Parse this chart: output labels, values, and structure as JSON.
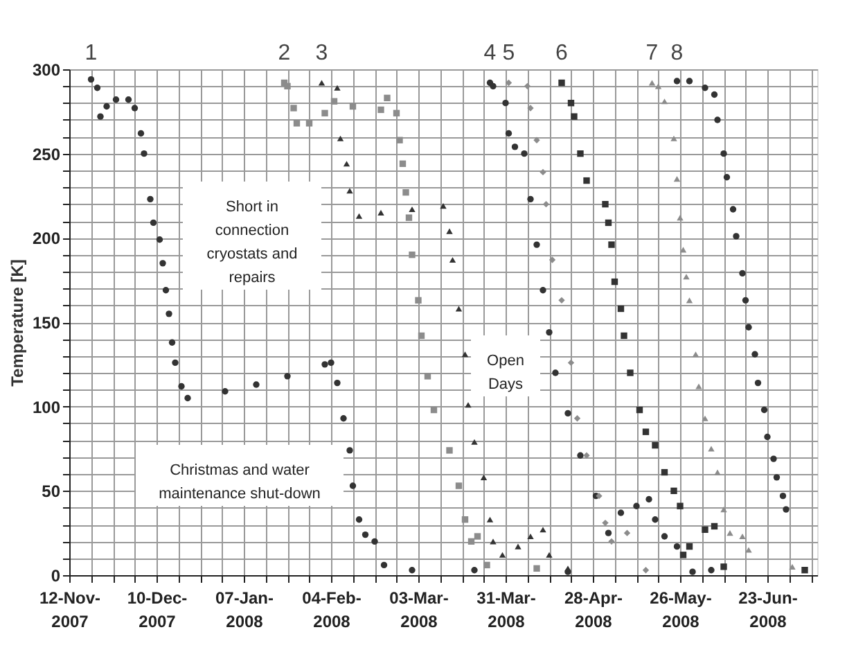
{
  "chart_data": {
    "type": "scatter",
    "ylabel": "Temperature [K]",
    "xlim": [
      "2007-11-12",
      "2008-07-09"
    ],
    "ylim": [
      0,
      300
    ],
    "xticks": [
      {
        "value": "2007-11-12",
        "label": "12-Nov-2007"
      },
      {
        "value": "2007-11-19",
        "label": null
      },
      {
        "value": "2007-11-26",
        "label": null
      },
      {
        "value": "2007-12-03",
        "label": null
      },
      {
        "value": "2007-12-10",
        "label": "10-Dec-2007"
      },
      {
        "value": "2007-12-17",
        "label": null
      },
      {
        "value": "2007-12-24",
        "label": null
      },
      {
        "value": "2007-12-31",
        "label": null
      },
      {
        "value": "2008-01-07",
        "label": "07-Jan-2008"
      },
      {
        "value": "2008-01-14",
        "label": null
      },
      {
        "value": "2008-01-21",
        "label": null
      },
      {
        "value": "2008-01-28",
        "label": null
      },
      {
        "value": "2008-02-04",
        "label": "04-Feb-2008"
      },
      {
        "value": "2008-02-11",
        "label": null
      },
      {
        "value": "2008-02-18",
        "label": null
      },
      {
        "value": "2008-02-25",
        "label": null
      },
      {
        "value": "2008-03-03",
        "label": "03-Mar-2008"
      },
      {
        "value": "2008-03-10",
        "label": null
      },
      {
        "value": "2008-03-17",
        "label": null
      },
      {
        "value": "2008-03-24",
        "label": null
      },
      {
        "value": "2008-03-31",
        "label": "31-Mar-2008"
      },
      {
        "value": "2008-04-07",
        "label": null
      },
      {
        "value": "2008-04-14",
        "label": null
      },
      {
        "value": "2008-04-21",
        "label": null
      },
      {
        "value": "2008-04-28",
        "label": "28-Apr-2008"
      },
      {
        "value": "2008-05-05",
        "label": null
      },
      {
        "value": "2008-05-12",
        "label": null
      },
      {
        "value": "2008-05-19",
        "label": null
      },
      {
        "value": "2008-05-26",
        "label": "26-May-2008"
      },
      {
        "value": "2008-06-02",
        "label": null
      },
      {
        "value": "2008-06-09",
        "label": null
      },
      {
        "value": "2008-06-16",
        "label": null
      },
      {
        "value": "2008-06-23",
        "label": "23-Jun-2008"
      },
      {
        "value": "2008-06-30",
        "label": null
      },
      {
        "value": "2008-07-07",
        "label": null
      }
    ],
    "yticks": [
      0,
      {
        "value": 10,
        "label": null
      },
      {
        "value": 20,
        "label": null
      },
      {
        "value": 30,
        "label": null
      },
      {
        "value": 40,
        "label": null
      },
      50,
      {
        "value": 60,
        "label": null
      },
      {
        "value": 70,
        "label": null
      },
      {
        "value": 80,
        "label": null
      },
      {
        "value": 90,
        "label": null
      },
      100,
      {
        "value": 110,
        "label": null
      },
      {
        "value": 120,
        "label": null
      },
      {
        "value": 130,
        "label": null
      },
      {
        "value": 140,
        "label": null
      },
      150,
      {
        "value": 160,
        "label": null
      },
      {
        "value": 170,
        "label": null
      },
      {
        "value": 180,
        "label": null
      },
      {
        "value": 190,
        "label": null
      },
      200,
      {
        "value": 210,
        "label": null
      },
      {
        "value": 220,
        "label": null
      },
      {
        "value": 230,
        "label": null
      },
      {
        "value": 240,
        "label": null
      },
      250,
      {
        "value": 260,
        "label": null
      },
      {
        "value": 270,
        "label": null
      },
      {
        "value": 280,
        "label": null
      },
      {
        "value": 290,
        "label": null
      },
      300
    ],
    "grid": true,
    "annotations": [
      "Short in connection cryostats and repairs",
      "Open Days",
      "Christmas and water maintenance shut-down"
    ],
    "series": [
      {
        "name": "1",
        "color": "#333333",
        "marker": "circle",
        "x": [
          "2007-11-19",
          "2007-11-21",
          "2007-11-22",
          "2007-11-24",
          "2007-11-27",
          "2007-12-01",
          "2007-12-03",
          "2007-12-05",
          "2007-12-06",
          "2007-12-08",
          "2007-12-09",
          "2007-12-11",
          "2007-12-12",
          "2007-12-13",
          "2007-12-14",
          "2007-12-15",
          "2007-12-16",
          "2007-12-18",
          "2007-12-20",
          "2008-01-01",
          "2008-01-11",
          "2008-01-21",
          "2008-02-02",
          "2008-02-04",
          "2008-02-06",
          "2008-02-08",
          "2008-02-10",
          "2008-02-11",
          "2008-02-13",
          "2008-02-15",
          "2008-02-18",
          "2008-02-21",
          "2008-03-01",
          "2008-03-21",
          "2008-04-20",
          "2008-05-30"
        ],
        "values": [
          294,
          289,
          272,
          278,
          282,
          282,
          277,
          262,
          250,
          223,
          209,
          199,
          185,
          169,
          155,
          138,
          126,
          112,
          105,
          109,
          113,
          118,
          125,
          126,
          114,
          93,
          74,
          53,
          33,
          24,
          20,
          6,
          3,
          3,
          2,
          2
        ]
      },
      {
        "name": "2",
        "color": "#8c8c8c",
        "marker": "square",
        "x": [
          "2008-01-20",
          "2008-01-21",
          "2008-01-23",
          "2008-01-24",
          "2008-01-28",
          "2008-02-02",
          "2008-02-05",
          "2008-02-11",
          "2008-02-20",
          "2008-02-22",
          "2008-02-25",
          "2008-02-26",
          "2008-02-27",
          "2008-02-28",
          "2008-02-29",
          "2008-03-01",
          "2008-03-03",
          "2008-03-04",
          "2008-03-06",
          "2008-03-08",
          "2008-03-13",
          "2008-03-16",
          "2008-03-18",
          "2008-03-20",
          "2008-03-22",
          "2008-03-25",
          "2008-04-10"
        ],
        "values": [
          292,
          290,
          277,
          268,
          268,
          274,
          281,
          278,
          276,
          283,
          274,
          258,
          244,
          227,
          212,
          190,
          163,
          142,
          118,
          98,
          74,
          53,
          33,
          20,
          23,
          6,
          4
        ]
      },
      {
        "name": "3",
        "color": "#333333",
        "marker": "triangle",
        "x": [
          "2008-02-01",
          "2008-02-06",
          "2008-02-07",
          "2008-02-09",
          "2008-02-10",
          "2008-02-13",
          "2008-02-20",
          "2008-03-01",
          "2008-03-11",
          "2008-03-13",
          "2008-03-14",
          "2008-03-16",
          "2008-03-18",
          "2008-03-19",
          "2008-03-21",
          "2008-03-24",
          "2008-03-26",
          "2008-03-27",
          "2008-03-30",
          "2008-04-04",
          "2008-04-08",
          "2008-04-12",
          "2008-04-14",
          "2008-04-20"
        ],
        "values": [
          292,
          289,
          259,
          244,
          228,
          213,
          215,
          217,
          219,
          204,
          187,
          158,
          131,
          101,
          79,
          58,
          33,
          20,
          12,
          17,
          23,
          27,
          12,
          4
        ]
      },
      {
        "name": "4",
        "color": "#333333",
        "marker": "circle",
        "x": [
          "2008-03-26",
          "2008-03-27",
          "2008-03-31",
          "2008-04-01",
          "2008-04-03",
          "2008-04-06",
          "2008-04-08",
          "2008-04-10",
          "2008-04-12",
          "2008-04-14",
          "2008-04-16",
          "2008-04-20",
          "2008-04-24",
          "2008-04-29",
          "2008-05-03",
          "2008-05-07",
          "2008-05-12",
          "2008-05-16",
          "2008-05-18",
          "2008-05-21",
          "2008-05-25",
          "2008-06-05"
        ],
        "values": [
          292,
          290,
          280,
          262,
          254,
          250,
          223,
          196,
          169,
          144,
          120,
          96,
          71,
          47,
          25,
          37,
          41,
          45,
          33,
          23,
          17,
          3
        ]
      },
      {
        "name": "5",
        "color": "#8c8c8c",
        "marker": "diamond",
        "x": [
          "2008-04-01",
          "2008-04-07",
          "2008-04-08",
          "2008-04-10",
          "2008-04-12",
          "2008-04-13",
          "2008-04-15",
          "2008-04-18",
          "2008-04-21",
          "2008-04-23",
          "2008-04-26",
          "2008-04-30",
          "2008-05-02",
          "2008-05-04",
          "2008-05-09",
          "2008-05-15"
        ],
        "values": [
          292,
          290,
          277,
          258,
          239,
          220,
          187,
          163,
          126,
          93,
          71,
          47,
          31,
          20,
          25,
          3
        ]
      },
      {
        "name": "6",
        "color": "#333333",
        "marker": "square",
        "x": [
          "2008-04-18",
          "2008-04-21",
          "2008-04-22",
          "2008-04-24",
          "2008-04-26",
          "2008-05-02",
          "2008-05-03",
          "2008-05-04",
          "2008-05-05",
          "2008-05-07",
          "2008-05-08",
          "2008-05-10",
          "2008-05-13",
          "2008-05-15",
          "2008-05-18",
          "2008-05-21",
          "2008-05-24",
          "2008-05-26",
          "2008-05-27",
          "2008-05-29",
          "2008-06-03",
          "2008-06-06",
          "2008-06-09",
          "2008-07-05"
        ],
        "values": [
          292,
          280,
          272,
          250,
          234,
          220,
          209,
          196,
          174,
          158,
          142,
          120,
          98,
          85,
          77,
          61,
          50,
          41,
          12,
          17,
          27,
          29,
          5,
          3
        ]
      },
      {
        "name": "7",
        "color": "#8c8c8c",
        "marker": "triangle",
        "x": [
          "2008-05-17",
          "2008-05-19",
          "2008-05-21",
          "2008-05-24",
          "2008-05-25",
          "2008-05-26",
          "2008-05-27",
          "2008-05-28",
          "2008-05-29",
          "2008-05-31",
          "2008-06-01",
          "2008-06-03",
          "2008-06-05",
          "2008-06-07",
          "2008-06-09",
          "2008-06-11",
          "2008-06-15",
          "2008-06-17",
          "2008-07-01"
        ],
        "values": [
          292,
          290,
          281,
          259,
          235,
          212,
          193,
          177,
          163,
          131,
          112,
          93,
          75,
          61,
          39,
          25,
          23,
          15,
          5
        ]
      },
      {
        "name": "8",
        "color": "#333333",
        "marker": "circle",
        "x": [
          "2008-05-25",
          "2008-05-29",
          "2008-06-03",
          "2008-06-06",
          "2008-06-07",
          "2008-06-09",
          "2008-06-10",
          "2008-06-12",
          "2008-06-13",
          "2008-06-15",
          "2008-06-16",
          "2008-06-17",
          "2008-06-19",
          "2008-06-20",
          "2008-06-22",
          "2008-06-23",
          "2008-06-25",
          "2008-06-26",
          "2008-06-28",
          "2008-06-29"
        ],
        "values": [
          293,
          293,
          289,
          285,
          270,
          250,
          236,
          217,
          201,
          179,
          163,
          147,
          131,
          114,
          98,
          82,
          69,
          58,
          47,
          39
        ]
      }
    ]
  }
}
